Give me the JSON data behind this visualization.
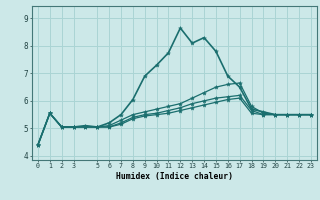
{
  "xlabel": "Humidex (Indice chaleur)",
  "ylabel": "",
  "background_color": "#cce8e8",
  "grid_color": "#aad4d4",
  "line_color": "#1a6e6e",
  "xlim": [
    -0.5,
    23.5
  ],
  "ylim": [
    3.85,
    9.45
  ],
  "yticks": [
    4,
    5,
    6,
    7,
    8,
    9
  ],
  "xtick_positions": [
    0,
    1,
    2,
    3,
    5,
    6,
    7,
    8,
    9,
    10,
    11,
    12,
    13,
    14,
    15,
    16,
    17,
    18,
    19,
    20,
    21,
    22,
    23
  ],
  "xtick_labels": [
    "0",
    "1",
    "2",
    "3",
    "5",
    "6",
    "7",
    "8",
    "9",
    "10",
    "11",
    "12",
    "13",
    "14",
    "15",
    "16",
    "17",
    "18",
    "19",
    "20",
    "21",
    "22",
    "23"
  ],
  "series": [
    [
      4.4,
      5.55,
      5.05,
      5.05,
      5.1,
      5.05,
      5.2,
      5.5,
      6.05,
      6.9,
      7.3,
      7.75,
      8.65,
      8.1,
      8.3,
      7.8,
      6.9,
      6.5,
      5.7,
      5.6,
      5.5,
      5.5,
      5.5,
      5.5
    ],
    [
      4.4,
      5.55,
      5.05,
      5.05,
      5.05,
      5.05,
      5.1,
      5.3,
      5.5,
      5.6,
      5.7,
      5.8,
      5.9,
      6.1,
      6.3,
      6.5,
      6.6,
      6.65,
      5.8,
      5.55,
      5.5,
      5.5,
      5.5,
      5.5
    ],
    [
      4.4,
      5.55,
      5.05,
      5.05,
      5.05,
      5.05,
      5.05,
      5.2,
      5.4,
      5.5,
      5.55,
      5.65,
      5.75,
      5.9,
      6.0,
      6.1,
      6.15,
      6.2,
      5.65,
      5.5,
      5.5,
      5.5,
      5.5,
      5.5
    ],
    [
      4.4,
      5.55,
      5.05,
      5.05,
      5.05,
      5.05,
      5.05,
      5.15,
      5.35,
      5.45,
      5.5,
      5.55,
      5.65,
      5.75,
      5.85,
      5.95,
      6.05,
      6.1,
      5.55,
      5.5,
      5.5,
      5.5,
      5.5,
      5.5
    ]
  ]
}
